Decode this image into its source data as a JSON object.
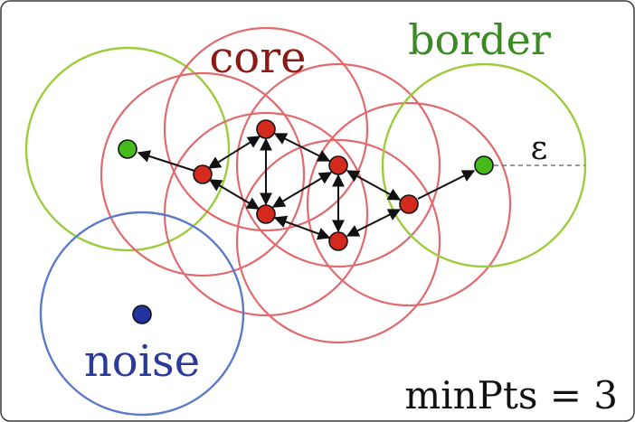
{
  "labels": {
    "core": "core",
    "border": "border",
    "noise": "noise",
    "epsilon": "ε",
    "min_pts": "minPts = 3"
  },
  "colors": {
    "core_point": "#d42a1e",
    "core_ring": "#e06a6e",
    "border_point": "#44bb1a",
    "border_ring": "#9ccc3c",
    "noise_point": "#2233a0",
    "noise_ring": "#5b7bc9"
  }
}
